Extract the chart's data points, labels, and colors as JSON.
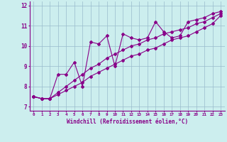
{
  "xlabel": "Windchill (Refroidissement éolien,°C)",
  "bg_color": "#cceeee",
  "line_color": "#880088",
  "grid_color": "#99bbcc",
  "x_values": [
    0,
    1,
    2,
    3,
    4,
    5,
    6,
    7,
    8,
    9,
    10,
    11,
    12,
    13,
    14,
    15,
    16,
    17,
    18,
    19,
    20,
    21,
    22,
    23
  ],
  "line1": [
    7.5,
    7.4,
    7.4,
    8.6,
    8.6,
    9.2,
    8.0,
    10.2,
    10.1,
    10.5,
    9.0,
    10.6,
    10.4,
    10.3,
    10.4,
    11.2,
    10.7,
    10.4,
    10.5,
    11.2,
    11.3,
    11.4,
    11.6,
    11.7
  ],
  "line2": [
    7.5,
    7.4,
    7.4,
    7.7,
    8.0,
    8.3,
    8.6,
    8.9,
    9.1,
    9.4,
    9.6,
    9.8,
    10.0,
    10.1,
    10.3,
    10.4,
    10.6,
    10.7,
    10.8,
    10.9,
    11.1,
    11.2,
    11.4,
    11.6
  ],
  "line3": [
    7.5,
    7.4,
    7.4,
    7.6,
    7.8,
    8.0,
    8.2,
    8.5,
    8.7,
    8.9,
    9.1,
    9.3,
    9.5,
    9.6,
    9.8,
    9.9,
    10.1,
    10.3,
    10.4,
    10.5,
    10.7,
    10.9,
    11.1,
    11.5
  ],
  "ylim": [
    6.8,
    12.2
  ],
  "yticks": [
    7,
    8,
    9,
    10,
    11,
    12
  ],
  "xlim": [
    -0.5,
    23.5
  ]
}
